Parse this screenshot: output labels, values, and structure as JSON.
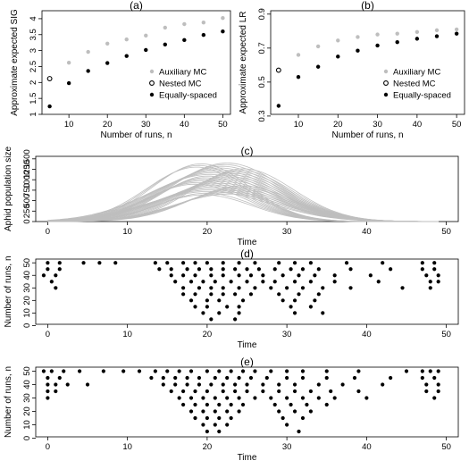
{
  "chart_data": [
    {
      "panel": "(a)",
      "type": "scatter",
      "xlabel": "Number of runs, n",
      "ylabel": "Approximate expected SIG",
      "xlim": [
        3,
        52
      ],
      "ylim": [
        1.0,
        4.25
      ],
      "xticks": [
        10,
        20,
        30,
        40,
        50
      ],
      "yticks": [
        1.0,
        1.5,
        2.0,
        2.5,
        3.0,
        3.5,
        4.0
      ],
      "legend_position": "bottom-right",
      "series": [
        {
          "name": "Auxiliary MC",
          "color": "#bebebe",
          "marker": "filled-circle",
          "x": [
            10,
            15,
            20,
            25,
            30,
            35,
            40,
            45,
            50
          ],
          "y": [
            2.62,
            2.96,
            3.22,
            3.35,
            3.47,
            3.72,
            3.83,
            3.88,
            4.02
          ]
        },
        {
          "name": "Nested MC",
          "color": "#000000",
          "marker": "open-circle",
          "x": [
            5
          ],
          "y": [
            2.12
          ]
        },
        {
          "name": "Equally-spaced",
          "color": "#000000",
          "marker": "filled-circle",
          "x": [
            5,
            10,
            15,
            20,
            25,
            30,
            35,
            40,
            45,
            50
          ],
          "y": [
            1.25,
            1.98,
            2.36,
            2.61,
            2.83,
            3.02,
            3.19,
            3.33,
            3.49,
            3.6
          ]
        }
      ]
    },
    {
      "panel": "(b)",
      "type": "scatter",
      "xlabel": "Number of runs, n",
      "ylabel": "Approximate expected LR",
      "xlim": [
        3,
        52
      ],
      "ylim": [
        0.31,
        0.92
      ],
      "xticks": [
        10,
        20,
        30,
        40,
        50
      ],
      "yticks": [
        0.3,
        0.5,
        0.7,
        0.9
      ],
      "ytick_labels": [
        "0.3",
        "0.5",
        "0.7",
        "0.9"
      ],
      "legend_position": "bottom-right",
      "series": [
        {
          "name": "Auxiliary MC",
          "color": "#bebebe",
          "marker": "filled-circle",
          "x": [
            10,
            15,
            20,
            25,
            30,
            35,
            40,
            45,
            50
          ],
          "y": [
            0.66,
            0.71,
            0.745,
            0.765,
            0.78,
            0.785,
            0.795,
            0.805,
            0.81
          ]
        },
        {
          "name": "Nested MC",
          "color": "#000000",
          "marker": "open-circle",
          "x": [
            5
          ],
          "y": [
            0.57
          ]
        },
        {
          "name": "Equally-spaced",
          "color": "#000000",
          "marker": "filled-circle",
          "x": [
            5,
            10,
            15,
            20,
            25,
            30,
            35,
            40,
            45,
            50
          ],
          "y": [
            0.36,
            0.53,
            0.59,
            0.65,
            0.685,
            0.715,
            0.735,
            0.755,
            0.77,
            0.785
          ]
        }
      ]
    },
    {
      "panel": "(c)",
      "type": "line",
      "xlabel": "Time",
      "ylabel": "Aphid population size",
      "xlim": [
        -1.5,
        51.5
      ],
      "ylim": [
        0,
        1560
      ],
      "xticks": [
        0,
        10,
        20,
        30,
        40,
        50
      ],
      "yticks": [
        0,
        250,
        500,
        750,
        1000,
        1250,
        1500
      ],
      "color": "#bebebe",
      "curve_family": {
        "count": 40,
        "t_start": 0,
        "t_end": 49,
        "peak_height_range": [
          640,
          1400
        ],
        "peak_time_range": [
          18.5,
          24.5
        ],
        "width_range": [
          5.8,
          7.6
        ]
      }
    },
    {
      "panel": "(d)",
      "type": "scatter",
      "xlabel": "Time",
      "ylabel": "Number of runs, n",
      "xlim": [
        -1.5,
        51.5
      ],
      "ylim": [
        1,
        53
      ],
      "xticks": [
        0,
        10,
        20,
        30,
        40,
        50
      ],
      "yticks": [
        0,
        10,
        20,
        30,
        40,
        50
      ],
      "color": "#000000",
      "rows": [
        {
          "n": 5,
          "t": [
            20.5,
            23.5
          ]
        },
        {
          "n": 10,
          "t": [
            19.5,
            21.5,
            24,
            31,
            34.5
          ]
        },
        {
          "n": 15,
          "t": [
            18.5,
            20,
            22.5,
            24,
            30.5,
            33
          ]
        },
        {
          "n": 20,
          "t": [
            18,
            20,
            21.5,
            24.5,
            29.5,
            31,
            33.5
          ]
        },
        {
          "n": 25,
          "t": [
            17,
            18.5,
            20.5,
            22,
            23.5,
            25.5,
            29,
            31.5,
            34
          ]
        },
        {
          "n": 30,
          "t": [
            1,
            17,
            19,
            20.5,
            22,
            24,
            26,
            28,
            30,
            32,
            34.5,
            38,
            44.5,
            48
          ]
        },
        {
          "n": 35,
          "t": [
            0.5,
            16,
            18,
            19.5,
            21,
            23,
            25,
            27,
            28.5,
            31,
            33,
            36,
            41.5,
            48,
            49
          ]
        },
        {
          "n": 40,
          "t": [
            -0.5,
            1,
            15.5,
            17,
            18.5,
            20.5,
            22,
            24,
            25.5,
            27,
            29.5,
            31.5,
            33.5,
            36,
            40.5,
            47.5,
            49
          ]
        },
        {
          "n": 45,
          "t": [
            0,
            1.5,
            14,
            15.5,
            17.5,
            19,
            20.5,
            22,
            23.5,
            25,
            26.5,
            28.5,
            30.5,
            32,
            34,
            38,
            43,
            47,
            48.5
          ]
        },
        {
          "n": 50,
          "t": [
            0,
            1.5,
            4.5,
            6.5,
            8.5,
            13.5,
            15,
            17,
            18.5,
            20,
            22,
            24,
            26,
            29,
            31,
            33,
            37.5,
            42,
            47,
            48.5
          ]
        }
      ]
    },
    {
      "panel": "(e)",
      "type": "scatter",
      "xlabel": "Time",
      "ylabel": "Number of runs, n",
      "xlim": [
        -1.5,
        51.5
      ],
      "ylim": [
        1,
        53
      ],
      "xticks": [
        0,
        10,
        20,
        30,
        40,
        50
      ],
      "yticks": [
        0,
        10,
        20,
        30,
        40,
        50
      ],
      "color": "#000000",
      "rows": [
        {
          "n": 5,
          "t": [
            20,
            21.5,
            31.5
          ]
        },
        {
          "n": 10,
          "t": [
            19.5,
            21,
            22.5,
            30
          ]
        },
        {
          "n": 15,
          "t": [
            18.5,
            20,
            21.5,
            23,
            29.5,
            32
          ]
        },
        {
          "n": 20,
          "t": [
            18,
            19.5,
            21,
            22.5,
            24,
            29,
            31,
            33
          ]
        },
        {
          "n": 25,
          "t": [
            17,
            18.5,
            20,
            21.5,
            23,
            24.5,
            28.5,
            30.5,
            32.5,
            35
          ]
        },
        {
          "n": 30,
          "t": [
            0,
            16.5,
            18,
            19.5,
            21,
            22.5,
            24,
            26,
            28,
            30,
            32,
            34,
            36,
            40,
            48.5
          ]
        },
        {
          "n": 35,
          "t": [
            0,
            1,
            15.5,
            17,
            18.5,
            20,
            22,
            23.5,
            25,
            27,
            29,
            31,
            33,
            35.5,
            39,
            47.5,
            49
          ]
        },
        {
          "n": 40,
          "t": [
            0,
            1,
            2.5,
            5,
            14.5,
            16,
            17.5,
            19,
            20.5,
            22,
            23.5,
            25,
            27,
            29,
            31,
            34,
            37,
            42,
            47.5,
            49
          ]
        },
        {
          "n": 45,
          "t": [
            0,
            1.5,
            13,
            14.5,
            16,
            17.5,
            19,
            21,
            22.5,
            24,
            25.5,
            27.5,
            30,
            32,
            35,
            38.5,
            43,
            47,
            48.5
          ]
        },
        {
          "n": 50,
          "t": [
            -0.5,
            0.5,
            2,
            4,
            7,
            9.5,
            11.5,
            13.5,
            15,
            16.5,
            18,
            20,
            21.5,
            23,
            24.5,
            26,
            28,
            30,
            32,
            35,
            39,
            45,
            47,
            48,
            49
          ]
        }
      ]
    }
  ]
}
